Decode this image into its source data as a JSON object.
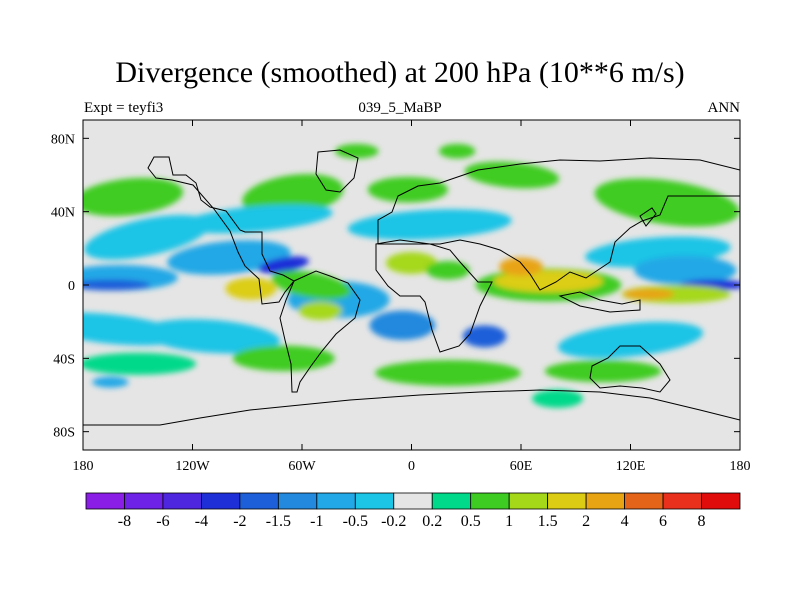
{
  "chart_data": {
    "type": "heatmap",
    "title": "Divergence (smoothed) at 200 hPa (10**6 m/s)",
    "subtitle_left": "Expt = teyfi3",
    "subtitle_center": "039_5_MaBP",
    "subtitle_right": "ANN",
    "x_ticks": [
      "180",
      "120W",
      "60W",
      "0",
      "60E",
      "120E",
      "180"
    ],
    "x_tick_values": [
      -180,
      -120,
      -60,
      0,
      60,
      120,
      180
    ],
    "y_ticks": [
      "80N",
      "40N",
      "0",
      "40S",
      "80S"
    ],
    "y_tick_values": [
      80,
      40,
      0,
      -40,
      -80
    ],
    "xlim": [
      -180,
      180
    ],
    "ylim": [
      -90,
      90
    ],
    "colorbar": {
      "colors": [
        "#8a1ee6",
        "#6e22e8",
        "#4f26e0",
        "#1f2fd8",
        "#1c5fd9",
        "#2389de",
        "#22a8e6",
        "#1cc4e6",
        "#e5e5e5",
        "#00d98a",
        "#3fcc22",
        "#a6d81a",
        "#dccd14",
        "#e8a412",
        "#e4641a",
        "#e8301c",
        "#e00b0b"
      ],
      "labels": [
        "-8",
        "-6",
        "-4",
        "-2",
        "-1.5",
        "-1",
        "-0.5",
        "-0.2",
        "0.2",
        "0.5",
        "1",
        "1.5",
        "2",
        "4",
        "6",
        "8"
      ]
    },
    "regions": [
      {
        "lon": -155,
        "lat": 48,
        "rx": 30,
        "ry": 10,
        "level": 10,
        "rot": -6
      },
      {
        "lon": -65,
        "lat": 49,
        "rx": 28,
        "ry": 11,
        "level": 10,
        "rot": -8
      },
      {
        "lon": -2,
        "lat": 52,
        "rx": 22,
        "ry": 7,
        "level": 10,
        "rot": 0
      },
      {
        "lon": 55,
        "lat": 60,
        "rx": 26,
        "ry": 7,
        "level": 10,
        "rot": 5
      },
      {
        "lon": 140,
        "lat": 45,
        "rx": 40,
        "ry": 12,
        "level": 10,
        "rot": 8
      },
      {
        "lon": -30,
        "lat": 73,
        "rx": 12,
        "ry": 4,
        "level": 10,
        "rot": 0
      },
      {
        "lon": 25,
        "lat": 73,
        "rx": 10,
        "ry": 4,
        "level": 10,
        "rot": 0
      },
      {
        "lon": -145,
        "lat": 26,
        "rx": 35,
        "ry": 10,
        "level": 7,
        "rot": -12
      },
      {
        "lon": -85,
        "lat": 36,
        "rx": 42,
        "ry": 7,
        "level": 7,
        "rot": -5
      },
      {
        "lon": 10,
        "lat": 33,
        "rx": 45,
        "ry": 8,
        "level": 7,
        "rot": -3
      },
      {
        "lon": 135,
        "lat": 18,
        "rx": 40,
        "ry": 8,
        "level": 7,
        "rot": -4
      },
      {
        "lon": -160,
        "lat": 4,
        "rx": 32,
        "ry": 7,
        "level": 6,
        "rot": 0
      },
      {
        "lon": -100,
        "lat": 15,
        "rx": 34,
        "ry": 9,
        "level": 6,
        "rot": -5
      },
      {
        "lon": -40,
        "lat": -8,
        "rx": 28,
        "ry": 10,
        "level": 6,
        "rot": 0
      },
      {
        "lon": 150,
        "lat": 8,
        "rx": 28,
        "ry": 8,
        "level": 6,
        "rot": 0
      },
      {
        "lon": -165,
        "lat": 0,
        "rx": 22,
        "ry": 3,
        "level": 4,
        "rot": 0
      },
      {
        "lon": -70,
        "lat": 11,
        "rx": 14,
        "ry": 4,
        "level": 3,
        "rot": -10
      },
      {
        "lon": 165,
        "lat": 0,
        "rx": 18,
        "ry": 3,
        "level": 3,
        "rot": 0
      },
      {
        "lon": -5,
        "lat": -22,
        "rx": 18,
        "ry": 8,
        "level": 5,
        "rot": 0
      },
      {
        "lon": 40,
        "lat": -28,
        "rx": 12,
        "ry": 6,
        "level": 4,
        "rot": 0
      },
      {
        "lon": -55,
        "lat": 0,
        "rx": 22,
        "ry": 7,
        "level": 10,
        "rot": 10
      },
      {
        "lon": -88,
        "lat": -2,
        "rx": 14,
        "ry": 6,
        "level": 12,
        "rot": 0
      },
      {
        "lon": -50,
        "lat": -14,
        "rx": 12,
        "ry": 5,
        "level": 11,
        "rot": 0
      },
      {
        "lon": 0,
        "lat": 12,
        "rx": 14,
        "ry": 6,
        "level": 11,
        "rot": 0
      },
      {
        "lon": 20,
        "lat": 8,
        "rx": 12,
        "ry": 5,
        "level": 10,
        "rot": 0
      },
      {
        "lon": 75,
        "lat": 0,
        "rx": 40,
        "ry": 9,
        "level": 10,
        "rot": 0
      },
      {
        "lon": 75,
        "lat": 2,
        "rx": 30,
        "ry": 6,
        "level": 12,
        "rot": 0
      },
      {
        "lon": 60,
        "lat": 10,
        "rx": 12,
        "ry": 5,
        "level": 13,
        "rot": 0
      },
      {
        "lon": 145,
        "lat": -5,
        "rx": 30,
        "ry": 5,
        "level": 11,
        "rot": 0
      },
      {
        "lon": 130,
        "lat": -5,
        "rx": 14,
        "ry": 3,
        "level": 13,
        "rot": 0
      },
      {
        "lon": -165,
        "lat": -24,
        "rx": 40,
        "ry": 8,
        "level": 7,
        "rot": 6
      },
      {
        "lon": -110,
        "lat": -28,
        "rx": 38,
        "ry": 9,
        "level": 7,
        "rot": 4
      },
      {
        "lon": 120,
        "lat": -30,
        "rx": 40,
        "ry": 9,
        "level": 7,
        "rot": -6
      },
      {
        "lon": -150,
        "lat": -43,
        "rx": 32,
        "ry": 6,
        "level": 9,
        "rot": 0
      },
      {
        "lon": -70,
        "lat": -40,
        "rx": 28,
        "ry": 7,
        "level": 10,
        "rot": 0
      },
      {
        "lon": 20,
        "lat": -48,
        "rx": 40,
        "ry": 7,
        "level": 10,
        "rot": 0
      },
      {
        "lon": 105,
        "lat": -47,
        "rx": 32,
        "ry": 6,
        "level": 10,
        "rot": 0
      },
      {
        "lon": 80,
        "lat": -62,
        "rx": 14,
        "ry": 5,
        "level": 9,
        "rot": 0
      },
      {
        "lon": -165,
        "lat": -53,
        "rx": 10,
        "ry": 3,
        "level": 6,
        "rot": 0
      }
    ]
  }
}
